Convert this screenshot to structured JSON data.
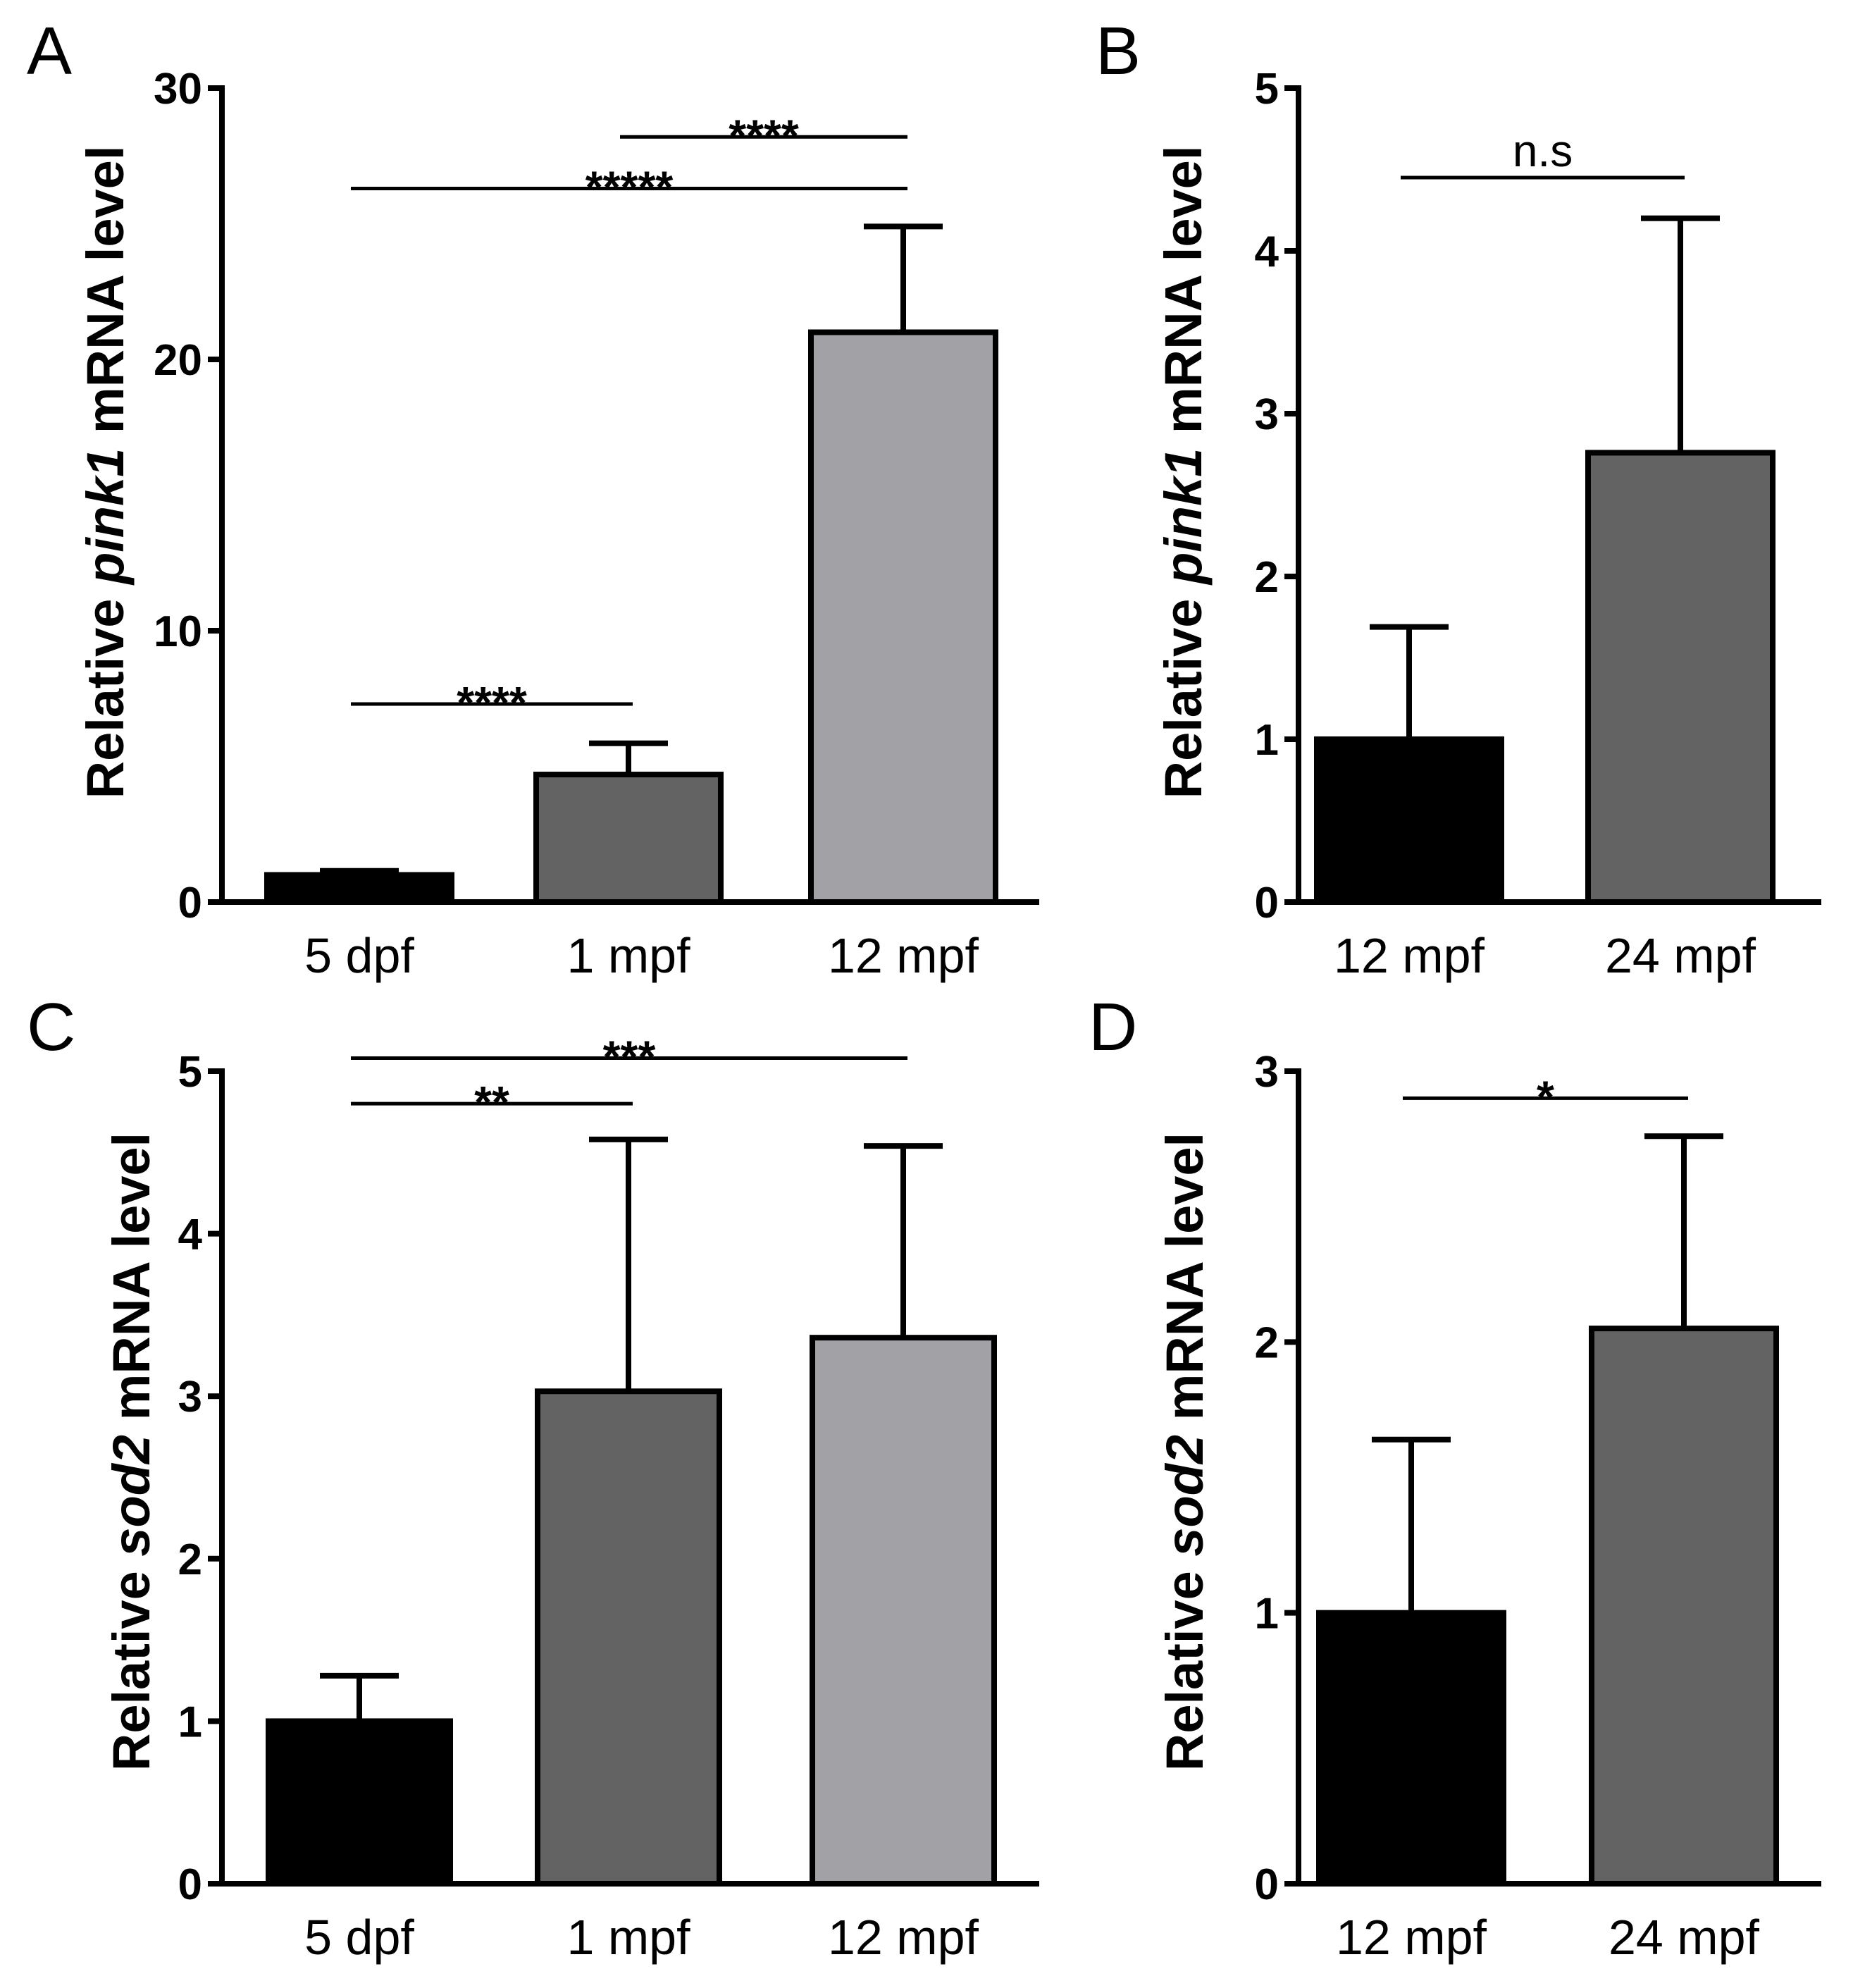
{
  "figure": {
    "panels": [
      {
        "id": "A",
        "label": "A"
      },
      {
        "id": "B",
        "label": "B"
      },
      {
        "id": "C",
        "label": "C"
      },
      {
        "id": "D",
        "label": "D"
      }
    ]
  },
  "chart_data": [
    {
      "id": "A",
      "type": "bar",
      "panel_label": "A",
      "ylabel": {
        "prefix": "Relative ",
        "gene": "pink1",
        "suffix": " mRNA level"
      },
      "xlabel": "",
      "categories": [
        "5 dpf",
        "1 mpf",
        "12 mpf"
      ],
      "values": [
        1.0,
        4.7,
        21.0
      ],
      "errors": [
        0.15,
        1.15,
        3.9
      ],
      "colors": [
        "#000000",
        "#636363",
        "#a2a1a6"
      ],
      "ylim": [
        0,
        30
      ],
      "yticks": [
        0,
        10,
        20,
        30
      ],
      "grid": false,
      "significance": [
        {
          "from": 0,
          "to": 1,
          "label": "****",
          "y": 7.3
        },
        {
          "from": 0,
          "to": 2,
          "label": "*****",
          "y": 26.3
        },
        {
          "from": 1,
          "to": 2,
          "label": "****",
          "y": 28.2
        }
      ]
    },
    {
      "id": "B",
      "type": "bar",
      "panel_label": "B",
      "ylabel": {
        "prefix": "Relative ",
        "gene": "pink1",
        "suffix": " mRNA level"
      },
      "xlabel": "",
      "categories": [
        "12 mpf",
        "24 mpf"
      ],
      "values": [
        1.0,
        2.76
      ],
      "errors": [
        0.69,
        1.44
      ],
      "colors": [
        "#000000",
        "#636363"
      ],
      "ylim": [
        0,
        5
      ],
      "yticks": [
        0,
        1,
        2,
        3,
        4,
        5
      ],
      "grid": false,
      "significance": [
        {
          "from": 0,
          "to": 1,
          "label": "n.s",
          "y": 4.45
        }
      ]
    },
    {
      "id": "C",
      "type": "bar",
      "panel_label": "C",
      "ylabel": {
        "prefix": "Relative ",
        "gene": "sod2",
        "suffix": " mRNA level"
      },
      "xlabel": "",
      "categories": [
        "5 dpf",
        "1 mpf",
        "12 mpf"
      ],
      "values": [
        1.0,
        3.03,
        3.36
      ],
      "errors": [
        0.28,
        1.55,
        1.18
      ],
      "colors": [
        "#000000",
        "#636363",
        "#a2a1a6"
      ],
      "ylim": [
        0,
        5
      ],
      "yticks": [
        0,
        1,
        2,
        3,
        4,
        5
      ],
      "grid": false,
      "significance": [
        {
          "from": 0,
          "to": 1,
          "label": "**",
          "y": 4.8
        },
        {
          "from": 0,
          "to": 2,
          "label": "***",
          "y": 5.08
        }
      ]
    },
    {
      "id": "D",
      "type": "bar",
      "panel_label": "D",
      "ylabel": {
        "prefix": "Relative ",
        "gene": "sod2",
        "suffix": " mRNA level"
      },
      "xlabel": "",
      "categories": [
        "12 mpf",
        "24 mpf"
      ],
      "values": [
        1.0,
        2.05
      ],
      "errors": [
        0.64,
        0.71
      ],
      "colors": [
        "#000000",
        "#636363"
      ],
      "ylim": [
        0,
        3
      ],
      "yticks": [
        0,
        1,
        2,
        3
      ],
      "grid": false,
      "significance": [
        {
          "from": 0,
          "to": 1,
          "label": "*",
          "y": 2.9
        }
      ]
    }
  ]
}
